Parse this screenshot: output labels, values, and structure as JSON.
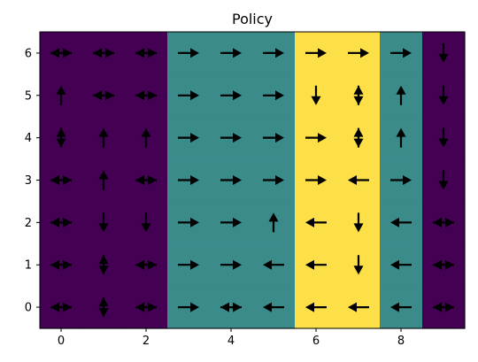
{
  "chart_data": {
    "type": "heatmap",
    "title": "Policy",
    "xlabel": "",
    "ylabel": "",
    "xlim": [
      -0.5,
      9.5
    ],
    "ylim": [
      -0.5,
      6.5
    ],
    "x_ticks": [
      0,
      2,
      4,
      6,
      8
    ],
    "y_ticks": [
      0,
      1,
      2,
      3,
      4,
      5,
      6
    ],
    "grid": false,
    "legend": "none",
    "column_values": [
      0,
      0,
      0,
      1,
      1,
      1,
      2,
      2,
      1,
      0
    ],
    "palette": [
      "#440154",
      "#3b8b8b",
      "#fde047"
    ],
    "arrow_color": "#000000",
    "arrows": [
      {
        "x": 0,
        "y": 6,
        "dirs": [
          "right",
          "left"
        ]
      },
      {
        "x": 1,
        "y": 6,
        "dirs": [
          "right",
          "left"
        ]
      },
      {
        "x": 2,
        "y": 6,
        "dirs": [
          "right",
          "left"
        ]
      },
      {
        "x": 3,
        "y": 6,
        "dirs": [
          "right"
        ]
      },
      {
        "x": 4,
        "y": 6,
        "dirs": [
          "right"
        ]
      },
      {
        "x": 5,
        "y": 6,
        "dirs": [
          "right"
        ]
      },
      {
        "x": 6,
        "y": 6,
        "dirs": [
          "right"
        ]
      },
      {
        "x": 7,
        "y": 6,
        "dirs": [
          "right"
        ]
      },
      {
        "x": 8,
        "y": 6,
        "dirs": [
          "right"
        ]
      },
      {
        "x": 9,
        "y": 6,
        "dirs": [
          "down"
        ]
      },
      {
        "x": 0,
        "y": 5,
        "dirs": [
          "up"
        ]
      },
      {
        "x": 1,
        "y": 5,
        "dirs": [
          "right",
          "left"
        ]
      },
      {
        "x": 2,
        "y": 5,
        "dirs": [
          "right",
          "left"
        ]
      },
      {
        "x": 3,
        "y": 5,
        "dirs": [
          "right"
        ]
      },
      {
        "x": 4,
        "y": 5,
        "dirs": [
          "right"
        ]
      },
      {
        "x": 5,
        "y": 5,
        "dirs": [
          "right"
        ]
      },
      {
        "x": 6,
        "y": 5,
        "dirs": [
          "down"
        ]
      },
      {
        "x": 7,
        "y": 5,
        "dirs": [
          "up",
          "down"
        ]
      },
      {
        "x": 8,
        "y": 5,
        "dirs": [
          "up"
        ]
      },
      {
        "x": 9,
        "y": 5,
        "dirs": [
          "down"
        ]
      },
      {
        "x": 0,
        "y": 4,
        "dirs": [
          "up",
          "down"
        ]
      },
      {
        "x": 1,
        "y": 4,
        "dirs": [
          "up"
        ]
      },
      {
        "x": 2,
        "y": 4,
        "dirs": [
          "up"
        ]
      },
      {
        "x": 3,
        "y": 4,
        "dirs": [
          "right"
        ]
      },
      {
        "x": 4,
        "y": 4,
        "dirs": [
          "right"
        ]
      },
      {
        "x": 5,
        "y": 4,
        "dirs": [
          "right"
        ]
      },
      {
        "x": 6,
        "y": 4,
        "dirs": [
          "right"
        ]
      },
      {
        "x": 7,
        "y": 4,
        "dirs": [
          "up",
          "down"
        ]
      },
      {
        "x": 8,
        "y": 4,
        "dirs": [
          "up"
        ]
      },
      {
        "x": 9,
        "y": 4,
        "dirs": [
          "down"
        ]
      },
      {
        "x": 0,
        "y": 3,
        "dirs": [
          "right",
          "left"
        ]
      },
      {
        "x": 1,
        "y": 3,
        "dirs": [
          "up"
        ]
      },
      {
        "x": 2,
        "y": 3,
        "dirs": [
          "right",
          "left"
        ]
      },
      {
        "x": 3,
        "y": 3,
        "dirs": [
          "right"
        ]
      },
      {
        "x": 4,
        "y": 3,
        "dirs": [
          "right"
        ]
      },
      {
        "x": 5,
        "y": 3,
        "dirs": [
          "right"
        ]
      },
      {
        "x": 6,
        "y": 3,
        "dirs": [
          "right"
        ]
      },
      {
        "x": 7,
        "y": 3,
        "dirs": [
          "left"
        ]
      },
      {
        "x": 8,
        "y": 3,
        "dirs": [
          "right"
        ]
      },
      {
        "x": 9,
        "y": 3,
        "dirs": [
          "down"
        ]
      },
      {
        "x": 0,
        "y": 2,
        "dirs": [
          "right",
          "left"
        ]
      },
      {
        "x": 1,
        "y": 2,
        "dirs": [
          "down"
        ]
      },
      {
        "x": 2,
        "y": 2,
        "dirs": [
          "down"
        ]
      },
      {
        "x": 3,
        "y": 2,
        "dirs": [
          "right"
        ]
      },
      {
        "x": 4,
        "y": 2,
        "dirs": [
          "right"
        ]
      },
      {
        "x": 5,
        "y": 2,
        "dirs": [
          "up"
        ]
      },
      {
        "x": 6,
        "y": 2,
        "dirs": [
          "left"
        ]
      },
      {
        "x": 7,
        "y": 2,
        "dirs": [
          "down"
        ]
      },
      {
        "x": 8,
        "y": 2,
        "dirs": [
          "left"
        ]
      },
      {
        "x": 9,
        "y": 2,
        "dirs": [
          "right",
          "left"
        ]
      },
      {
        "x": 0,
        "y": 1,
        "dirs": [
          "right",
          "left"
        ]
      },
      {
        "x": 1,
        "y": 1,
        "dirs": [
          "up",
          "down"
        ]
      },
      {
        "x": 2,
        "y": 1,
        "dirs": [
          "right",
          "left"
        ]
      },
      {
        "x": 3,
        "y": 1,
        "dirs": [
          "right"
        ]
      },
      {
        "x": 4,
        "y": 1,
        "dirs": [
          "right"
        ]
      },
      {
        "x": 5,
        "y": 1,
        "dirs": [
          "left"
        ]
      },
      {
        "x": 6,
        "y": 1,
        "dirs": [
          "left"
        ]
      },
      {
        "x": 7,
        "y": 1,
        "dirs": [
          "down"
        ]
      },
      {
        "x": 8,
        "y": 1,
        "dirs": [
          "left"
        ]
      },
      {
        "x": 9,
        "y": 1,
        "dirs": [
          "right",
          "left"
        ]
      },
      {
        "x": 0,
        "y": 0,
        "dirs": [
          "right",
          "left"
        ]
      },
      {
        "x": 1,
        "y": 0,
        "dirs": [
          "up",
          "down"
        ]
      },
      {
        "x": 2,
        "y": 0,
        "dirs": [
          "right",
          "left"
        ]
      },
      {
        "x": 3,
        "y": 0,
        "dirs": [
          "right"
        ]
      },
      {
        "x": 4,
        "y": 0,
        "dirs": [
          "right",
          "left"
        ]
      },
      {
        "x": 5,
        "y": 0,
        "dirs": [
          "left"
        ]
      },
      {
        "x": 6,
        "y": 0,
        "dirs": [
          "left"
        ]
      },
      {
        "x": 7,
        "y": 0,
        "dirs": [
          "left"
        ]
      },
      {
        "x": 8,
        "y": 0,
        "dirs": [
          "left"
        ]
      },
      {
        "x": 9,
        "y": 0,
        "dirs": [
          "right",
          "left"
        ]
      }
    ]
  }
}
